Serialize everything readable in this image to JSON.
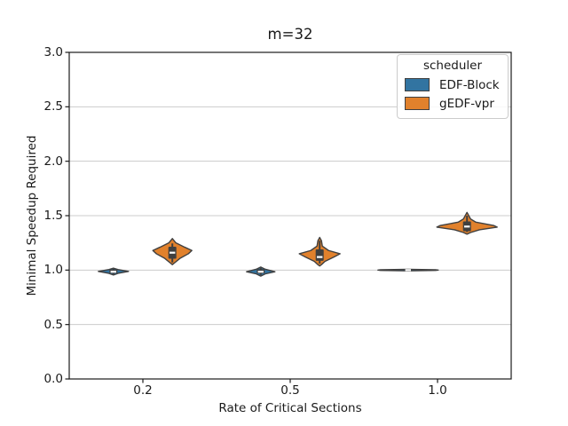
{
  "figure": {
    "title": "m=32",
    "background": "#ffffff"
  },
  "axes": {
    "x": {
      "label": "Rate of Critical Sections",
      "tick_labels": [
        "0.2",
        "0.5",
        "1.0"
      ]
    },
    "y": {
      "label": "Minimal Speedup Required",
      "tick_labels": [
        "0.0",
        "0.5",
        "1.0",
        "1.5",
        "2.0",
        "2.5",
        "3.0"
      ],
      "min": 0.0,
      "max": 3.0
    }
  },
  "legend": {
    "title": "scheduler",
    "entries": [
      {
        "label": "EDF-Block",
        "color": "#3274a1"
      },
      {
        "label": "gEDF-vpr",
        "color": "#e1812c"
      }
    ]
  },
  "colors": {
    "blue": "#3274a1",
    "orange": "#e1812c",
    "edge": "#404040",
    "grid": "#cccccc",
    "spine": "#1a1a1a",
    "median": "#ffffff"
  },
  "chart_data": {
    "type": "violin",
    "title": "m=32",
    "xlabel": "Rate of Critical Sections",
    "ylabel": "Minimal Speedup Required",
    "categories": [
      "0.2",
      "0.5",
      "1.0"
    ],
    "ylim": [
      0.0,
      3.0
    ],
    "ytick_step": 0.5,
    "grid": "horizontal",
    "legend_position": "upper right",
    "hue_offset_units": 0.2,
    "series": [
      {
        "name": "EDF-Block",
        "color": "#3274a1",
        "violins": [
          {
            "category": "0.2",
            "median": 0.985,
            "q1": 0.972,
            "q3": 1.005,
            "whisker_low": 0.958,
            "whisker_high": 1.012,
            "profile_value_halfwidthpx": [
              [
                1.018,
                0
              ],
              [
                1.005,
                5
              ],
              [
                0.988,
                17
              ],
              [
                0.972,
                6
              ],
              [
                0.955,
                0
              ]
            ]
          },
          {
            "category": "0.5",
            "median": 0.985,
            "q1": 0.97,
            "q3": 1.008,
            "whisker_low": 0.955,
            "whisker_high": 1.02,
            "profile_value_halfwidthpx": [
              [
                1.028,
                0
              ],
              [
                1.008,
                5
              ],
              [
                0.985,
                16
              ],
              [
                0.965,
                5
              ],
              [
                0.945,
                0
              ]
            ]
          },
          {
            "category": "1.0",
            "median": 1.0,
            "q1": 0.998,
            "q3": 1.002,
            "whisker_low": 0.995,
            "whisker_high": 1.005,
            "profile_value_halfwidthpx": [
              [
                1.007,
                0
              ],
              [
                1.003,
                31
              ],
              [
                1.0,
                34
              ],
              [
                0.997,
                31
              ],
              [
                0.993,
                0
              ]
            ]
          }
        ]
      },
      {
        "name": "gEDF-vpr",
        "color": "#e1812c",
        "violins": [
          {
            "category": "0.2",
            "median": 1.16,
            "q1": 1.105,
            "q3": 1.215,
            "whisker_low": 1.07,
            "whisker_high": 1.245,
            "profile_value_halfwidthpx": [
              [
                1.29,
                0
              ],
              [
                1.25,
                4
              ],
              [
                1.21,
                14
              ],
              [
                1.18,
                22
              ],
              [
                1.15,
                18
              ],
              [
                1.11,
                9
              ],
              [
                1.07,
                3
              ],
              [
                1.05,
                0
              ]
            ]
          },
          {
            "category": "0.5",
            "median": 1.12,
            "q1": 1.085,
            "q3": 1.19,
            "whisker_low": 1.06,
            "whisker_high": 1.27,
            "profile_value_halfwidthpx": [
              [
                1.3,
                0
              ],
              [
                1.27,
                2
              ],
              [
                1.22,
                3
              ],
              [
                1.18,
                10
              ],
              [
                1.15,
                23
              ],
              [
                1.12,
                16
              ],
              [
                1.08,
                6
              ],
              [
                1.05,
                2
              ],
              [
                1.038,
                0
              ]
            ]
          },
          {
            "category": "1.0",
            "median": 1.4,
            "q1": 1.357,
            "q3": 1.447,
            "whisker_low": 1.35,
            "whisker_high": 1.5,
            "profile_value_halfwidthpx": [
              [
                1.53,
                0
              ],
              [
                1.5,
                2
              ],
              [
                1.47,
                4
              ],
              [
                1.44,
                10
              ],
              [
                1.41,
                30
              ],
              [
                1.395,
                34
              ],
              [
                1.37,
                14
              ],
              [
                1.345,
                4
              ],
              [
                1.33,
                0
              ]
            ]
          }
        ]
      }
    ]
  }
}
